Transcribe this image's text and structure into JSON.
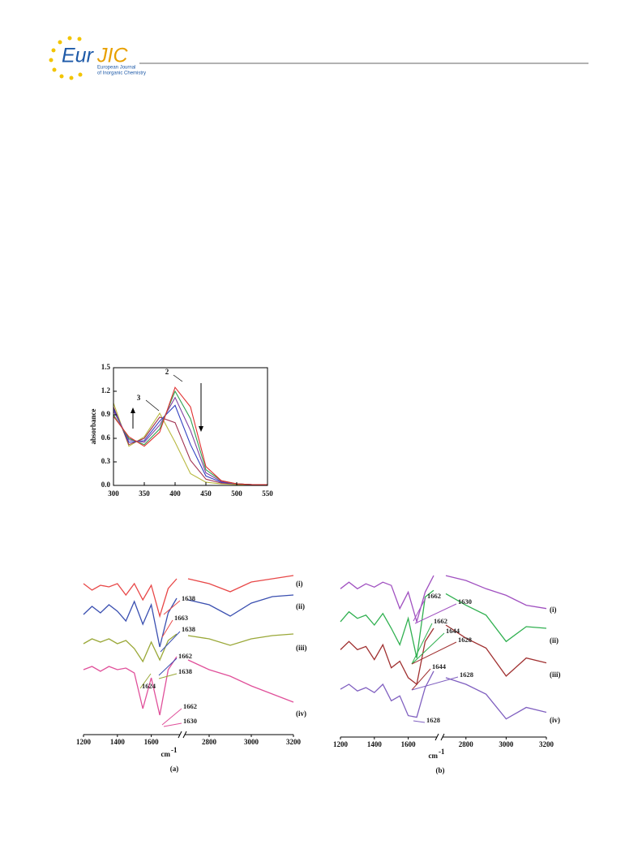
{
  "header": {
    "logo_main": "Eur",
    "logo_accent": "JIC",
    "logo_line1": "European Journal",
    "logo_line2": "of Inorganic Chemistry"
  },
  "chart_data": [
    {
      "type": "line",
      "y_label": "absorbance",
      "x": [
        300,
        325,
        350,
        375,
        400,
        425,
        450,
        475,
        500,
        525,
        550
      ],
      "series": [
        {
          "color": "#b8b840",
          "values": [
            1.05,
            0.5,
            0.62,
            0.92,
            0.55,
            0.15,
            0.04,
            0.02,
            0.01,
            0.01,
            0.01
          ]
        },
        {
          "color": "#a03050",
          "values": [
            1.0,
            0.52,
            0.6,
            0.87,
            0.8,
            0.32,
            0.08,
            0.03,
            0.02,
            0.01,
            0.01
          ]
        },
        {
          "color": "#3040c0",
          "values": [
            0.98,
            0.55,
            0.57,
            0.82,
            1.02,
            0.52,
            0.12,
            0.04,
            0.02,
            0.01,
            0.01
          ]
        },
        {
          "color": "#8040a0",
          "values": [
            0.95,
            0.58,
            0.55,
            0.77,
            1.12,
            0.7,
            0.16,
            0.05,
            0.02,
            0.01,
            0.01
          ]
        },
        {
          "color": "#30a050",
          "values": [
            0.9,
            0.6,
            0.52,
            0.72,
            1.2,
            0.85,
            0.2,
            0.06,
            0.02,
            0.01,
            0.01
          ]
        },
        {
          "color": "#e03030",
          "values": [
            0.88,
            0.62,
            0.5,
            0.68,
            1.25,
            1.0,
            0.24,
            0.06,
            0.02,
            0.01,
            0.01
          ]
        }
      ],
      "xlim": [
        300,
        550
      ],
      "xticks": [
        300,
        350,
        400,
        450,
        500,
        550
      ],
      "ylim": [
        0,
        1.5
      ],
      "yticks": [
        {
          "value": 0,
          "label": "0.0"
        },
        0.3,
        0.6,
        0.9,
        1.2,
        1.5
      ],
      "annotations": [
        "2",
        "3"
      ]
    },
    {
      "type": "line",
      "panel_label": "(a)",
      "x_label": "cm",
      "x_label_sup": "-1",
      "x": [
        1200,
        1250,
        1300,
        1350,
        1400,
        1450,
        1500,
        1550,
        1600,
        1650,
        1700,
        1750,
        2700,
        2800,
        2900,
        3000,
        3100,
        3200
      ],
      "xlim": [
        1200,
        3200
      ],
      "axis_break": [
        1750,
        2700
      ],
      "xticks": [
        1200,
        1400,
        1600,
        2800,
        3000,
        3200
      ],
      "ylim": [
        0,
        10
      ],
      "series": [
        {
          "name": "(i)",
          "color": "#e84848",
          "values": [
            9.3,
            8.9,
            9.2,
            9.1,
            9.3,
            8.6,
            9.3,
            8.3,
            9.2,
            7.3,
            9.0,
            9.6,
            9.6,
            9.3,
            8.8,
            9.4,
            9.6,
            9.8
          ]
        },
        {
          "name": "(ii)",
          "color": "#3a4fb0",
          "values": [
            7.4,
            7.9,
            7.5,
            8.0,
            7.6,
            7.0,
            8.2,
            6.8,
            8.0,
            5.4,
            7.5,
            8.4,
            8.3,
            8.0,
            7.3,
            8.1,
            8.5,
            8.6
          ]
        },
        {
          "name": "(iii)",
          "color": "#9aa838",
          "values": [
            5.6,
            5.9,
            5.7,
            5.9,
            5.6,
            5.8,
            5.3,
            4.5,
            5.7,
            4.6,
            5.8,
            6.2,
            6.1,
            5.9,
            5.5,
            5.9,
            6.1,
            6.2
          ]
        },
        {
          "name": "(iv)",
          "color": "#e0509a",
          "values": [
            4.0,
            4.2,
            3.9,
            4.2,
            4.0,
            4.1,
            3.8,
            1.6,
            3.5,
            1.2,
            4.0,
            4.8,
            4.6,
            4.0,
            3.6,
            3.0,
            2.5,
            2.0
          ]
        }
      ],
      "peak_labels": [
        1638,
        1663,
        1638,
        1662,
        1638,
        1624,
        1662,
        1630
      ]
    },
    {
      "type": "line",
      "panel_label": "(b)",
      "x_label": "cm",
      "x_label_sup": "-1",
      "x": [
        1200,
        1250,
        1300,
        1350,
        1400,
        1450,
        1500,
        1550,
        1600,
        1650,
        1700,
        1750,
        2700,
        2800,
        2900,
        3000,
        3100,
        3200
      ],
      "xlim": [
        1200,
        3200
      ],
      "axis_break": [
        1750,
        2700
      ],
      "xticks": [
        1200,
        1400,
        1600,
        2800,
        3000,
        3200
      ],
      "ylim": [
        0,
        10
      ],
      "series": [
        {
          "name": "(i)",
          "color": "#a050c0",
          "values": [
            9.0,
            9.4,
            9.0,
            9.3,
            9.1,
            9.4,
            9.2,
            7.8,
            8.8,
            7.0,
            8.8,
            9.8,
            9.8,
            9.5,
            9.0,
            8.6,
            8.0,
            7.8
          ]
        },
        {
          "name": "(ii)",
          "color": "#30b050",
          "values": [
            7.0,
            7.6,
            7.2,
            7.4,
            6.8,
            7.5,
            6.6,
            5.6,
            7.2,
            4.8,
            8.5,
            8.9,
            8.7,
            8.0,
            7.4,
            5.8,
            6.7,
            6.6
          ]
        },
        {
          "name": "(iii)",
          "color": "#a03030",
          "values": [
            5.3,
            5.8,
            5.3,
            5.5,
            4.7,
            5.6,
            4.2,
            4.6,
            3.6,
            3.2,
            5.8,
            6.6,
            6.8,
            6.0,
            5.4,
            3.7,
            4.8,
            4.5
          ]
        },
        {
          "name": "(iv)",
          "color": "#8060c0",
          "values": [
            2.9,
            3.2,
            2.8,
            3.0,
            2.7,
            3.2,
            2.2,
            2.5,
            1.3,
            1.2,
            3.0,
            4.0,
            3.6,
            3.2,
            2.6,
            1.1,
            1.8,
            1.5
          ]
        }
      ],
      "peak_labels": [
        1662,
        1630,
        1662,
        1644,
        1628,
        1644,
        1628,
        1628
      ]
    }
  ]
}
